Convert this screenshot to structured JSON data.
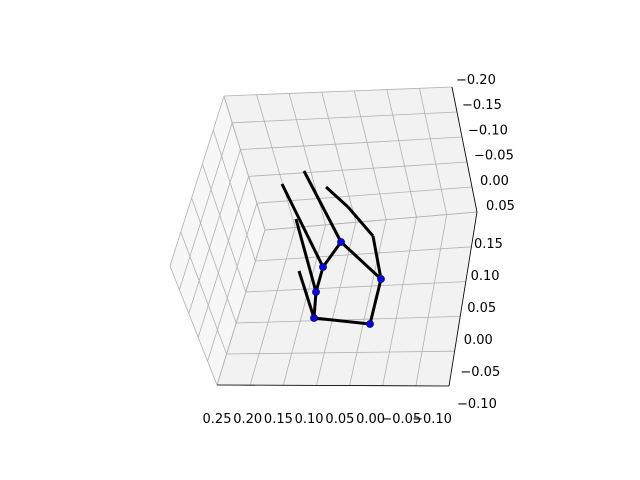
{
  "chart_data": {
    "type": "scatter",
    "subtype": "3d-hand-skeleton",
    "title": "",
    "xlabel": "",
    "ylabel": "",
    "zlabel": "",
    "grid": true,
    "axes": {
      "bottom_ticks": [
        "0.25",
        "0.20",
        "0.15",
        "0.10",
        "0.05",
        "0.00",
        "−0.05",
        "−0.10"
      ],
      "right_lower_ticks": [
        "0.15",
        "0.10",
        "0.05",
        "0.00",
        "−0.05",
        "−0.10"
      ],
      "right_upper_ticks": [
        "−0.20",
        "−0.15",
        "−0.10",
        "−0.05",
        "0.00",
        "0.05"
      ]
    },
    "colors": {
      "bones": "#000000",
      "joints": "#0a0ad0",
      "pane_back": "#f2f2f2",
      "pane_side": "#f7f7f7",
      "grid": "#b0b0b0"
    },
    "series": [
      {
        "role": "joints",
        "points": [
          {
            "x": 0.095,
            "y": 0.025,
            "label": ""
          },
          {
            "x": 0.005,
            "y": 0.015,
            "label": ""
          },
          {
            "x": 0.095,
            "y": 0.075,
            "label": ""
          },
          {
            "x": 0.085,
            "y": 0.11,
            "label": ""
          },
          {
            "x": 0.055,
            "y": 0.155,
            "label": ""
          },
          {
            "x": -0.01,
            "y": 0.09,
            "label": ""
          }
        ]
      }
    ],
    "bones": [
      {
        "from": "wrist",
        "to": "pinky_mcp"
      },
      {
        "from": "pinky_mcp",
        "to": "ring_mcp"
      },
      {
        "from": "ring_mcp",
        "to": "ring_pip"
      },
      {
        "from": "ring_pip",
        "to": "ring_tip"
      },
      {
        "from": "ring_mcp",
        "to": "middle_mcp"
      },
      {
        "from": "middle_mcp",
        "to": "middle_tip"
      },
      {
        "from": "middle_mcp",
        "to": "index_mcp"
      },
      {
        "from": "index_mcp",
        "to": "index_tip"
      },
      {
        "from": "index_mcp",
        "to": "wrist"
      },
      {
        "from": "wrist",
        "to": "thumb_mcp"
      },
      {
        "from": "thumb_mcp",
        "to": "thumb_tip"
      },
      {
        "from": "wrist",
        "to": "thumb_base"
      }
    ]
  }
}
